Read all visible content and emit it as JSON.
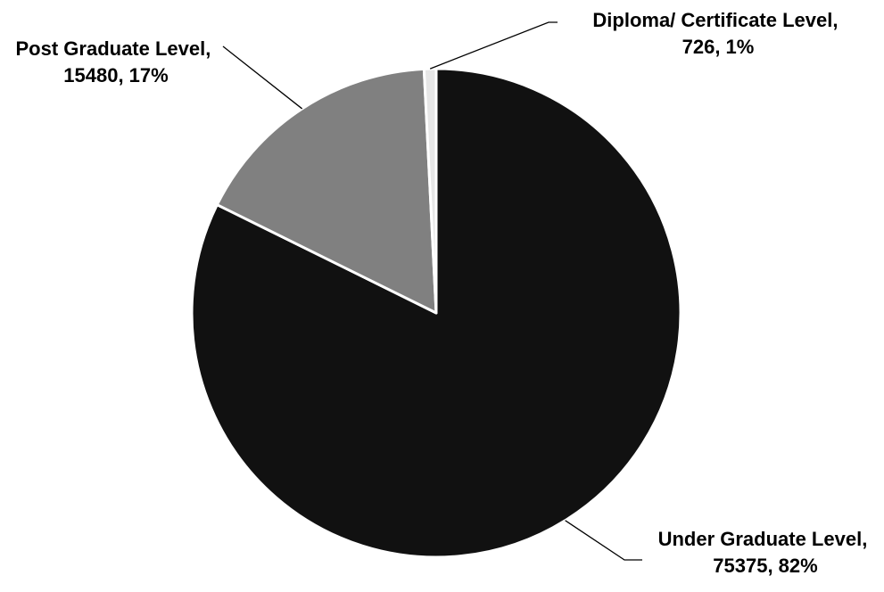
{
  "chart_data": {
    "type": "pie",
    "title": "",
    "start_angle_deg": 0,
    "direction": "clockwise",
    "slices": [
      {
        "label": "Under Graduate Level",
        "value": 75375,
        "percent": "82%",
        "color": "#111111"
      },
      {
        "label": "Post Graduate Level",
        "value": 15480,
        "percent": "17%",
        "color": "#808080"
      },
      {
        "label": "Diploma/ Certificate Level",
        "value": 726,
        "percent": "1%",
        "color": "#e6e6e6"
      }
    ],
    "data_labels": [
      {
        "line1": "Under Graduate Level,",
        "line2": "75375, 82%"
      },
      {
        "line1": "Post Graduate Level,",
        "line2": "15480, 17%"
      },
      {
        "line1": "Diploma/ Certificate Level,",
        "line2": "726, 1%"
      }
    ],
    "legend": "none"
  }
}
